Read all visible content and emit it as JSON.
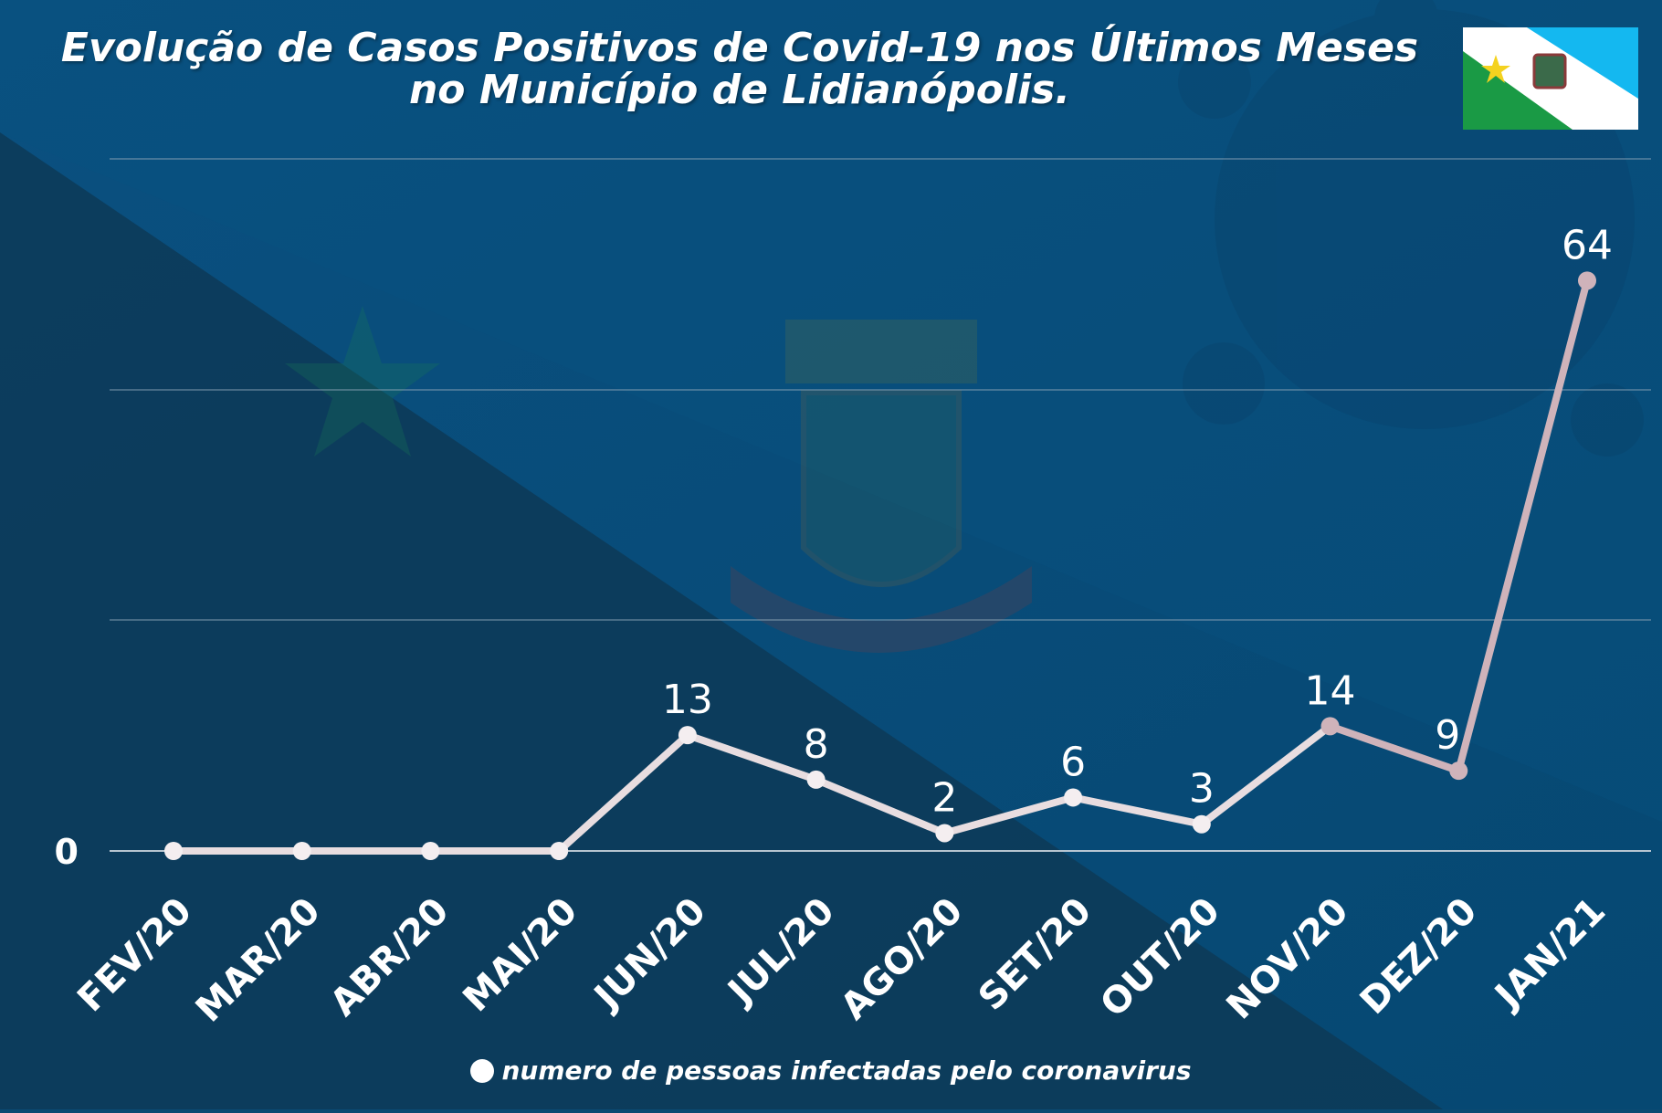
{
  "title_lines": [
    "Evolução de Casos Positivos de Covid-19 nos Últimos Meses",
    "no Município de Lidianópolis."
  ],
  "legend_label": "numero de pessoas infectadas pelo coronavirus",
  "colors": {
    "background_top": "#0a4c78",
    "background_bottom": "#0c3e5c",
    "line": "#e8dde0",
    "line_high": "#cfb3ba",
    "text": "#ffffff",
    "flag_green": "#1a9a45",
    "flag_blue": "#14b8f0",
    "flag_white": "#ffffff",
    "flag_star": "#f4d21f"
  },
  "icons": [
    "flag-icon",
    "star-icon",
    "coat-of-arms-icon",
    "virus-icon"
  ],
  "chart_data": {
    "type": "line",
    "categories": [
      "FEV/20",
      "MAR/20",
      "ABR/20",
      "MAI/20",
      "JUN/20",
      "JUL/20",
      "AGO/20",
      "SET/20",
      "OUT/20",
      "NOV/20",
      "DEZ/20",
      "JAN/21"
    ],
    "series": [
      {
        "values": [
          0,
          0,
          0,
          0,
          13,
          8,
          2,
          6,
          3,
          14,
          9,
          64
        ]
      }
    ],
    "data_labels": [
      "",
      "",
      "",
      "",
      "13",
      "8",
      "2",
      "6",
      "3",
      "14",
      "9",
      "64"
    ],
    "y_tick_labels": [
      "0"
    ],
    "ylim": [
      0,
      75
    ],
    "grid": true,
    "legend_position": "bottom"
  }
}
